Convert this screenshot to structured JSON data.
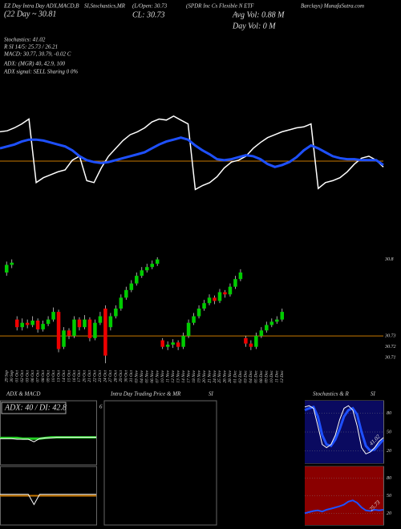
{
  "header": {
    "t1": "EZ Day Intra Day ADX,MACD,B",
    "t2": "SI,Stochastics,MR",
    "t3": "(L/Open: 30.73",
    "t4": "(SPDR Inc  Cs Flexible N ETF",
    "t5": "Barclays) MunafaSutra.com",
    "t6": "(22 Day ~ 30.81",
    "t7": "CL: 30.73",
    "t8": "Avg Vol: 0.88  M",
    "t9": "Day Vol: 0  M",
    "s1": "Stochastics: 41.02",
    "s2": "R                 SI 14/5: 25.73 / 26.21",
    "s3": "MACD: 30.77, 30.79, -0.02  C",
    "s4": "ADX:                (MGR) 40, 42.9, 100",
    "s5": "ADX  signal: SELL  Sharing 0 0%"
  },
  "chart_data": [
    {
      "type": "line",
      "ylim": [
        0,
        100
      ],
      "reference_line": 50,
      "reference_color": "#c87800",
      "series": [
        {
          "color": "#ffffff",
          "width": 1.5,
          "values": [
            80,
            81,
            84,
            88,
            93,
            28,
            33,
            36,
            39,
            41,
            51,
            55,
            30,
            28,
            43,
            55,
            63,
            71,
            77,
            80,
            84,
            90,
            93,
            92,
            96,
            92,
            88,
            21,
            25,
            28,
            34,
            43,
            49,
            51,
            55,
            63,
            69,
            74,
            77,
            80,
            82,
            84,
            85,
            88,
            22,
            28,
            30,
            33,
            39,
            47,
            53,
            55,
            51,
            44
          ]
        },
        {
          "color": "#1e50ff",
          "width": 3,
          "values": [
            63,
            65,
            67,
            70,
            72,
            72,
            71,
            69,
            67,
            65,
            61,
            55,
            51,
            49,
            48,
            49,
            51,
            53,
            55,
            57,
            59,
            63,
            67,
            70,
            72,
            74,
            72,
            66,
            61,
            57,
            52,
            51,
            52,
            54,
            56,
            55,
            52,
            47,
            44,
            46,
            49,
            54,
            61,
            66,
            63,
            59,
            55,
            53,
            52,
            52,
            51,
            51,
            51,
            46
          ]
        }
      ]
    },
    {
      "type": "candlestick",
      "ylim": [
        30.7,
        30.81
      ],
      "yticks": [
        30.8,
        30.73,
        30.72,
        30.71
      ],
      "reference_line": 30.73,
      "reference_color": "#c87800",
      "up_color": "#00cc00",
      "down_color": "#ee0000",
      "categories": [
        "29 Sep",
        "30 Sep",
        "01 Oct",
        "02 Oct",
        "03 Oct",
        "06 Oct",
        "07 Oct",
        "08 Oct",
        "09 Oct",
        "10 Oct",
        "13 Oct",
        "14 Oct",
        "15 Oct",
        "16 Oct",
        "17 Oct",
        "20 Oct",
        "21 Oct",
        "22 Oct",
        "23 Oct",
        "24 Oct",
        "27 Oct",
        "28 Oct",
        "29 Oct",
        "30 Oct",
        "31 Oct",
        "03 Nov",
        "04 Nov",
        "05 Nov",
        "06 Nov",
        "07 Nov",
        "10 Nov",
        "11 Nov",
        "12 Nov",
        "13 Nov",
        "14 Nov",
        "17 Nov",
        "18 Nov",
        "19 Nov",
        "20 Nov",
        "21 Nov",
        "24 Nov",
        "25 Nov",
        "26 Nov",
        "28 Nov",
        "01 Dec",
        "02 Dec",
        "03 Dec",
        "04 Dec",
        "05 Dec",
        "08 Dec",
        "09 Dec",
        "10 Dec",
        "11 Dec",
        "12 Dec"
      ],
      "ohlc": [
        [
          30.788,
          30.798,
          30.785,
          30.795
        ],
        [
          30.795,
          30.8,
          30.792,
          30.797
        ],
        [
          30.745,
          30.748,
          30.735,
          30.738
        ],
        [
          30.738,
          30.746,
          30.735,
          30.742
        ],
        [
          30.742,
          30.745,
          30.737,
          30.74
        ],
        [
          30.74,
          30.748,
          30.738,
          30.744
        ],
        [
          30.744,
          30.746,
          30.733,
          30.736
        ],
        [
          30.736,
          30.744,
          30.734,
          30.741
        ],
        [
          30.741,
          30.748,
          30.739,
          30.745
        ],
        [
          30.745,
          30.756,
          30.743,
          30.752
        ],
        [
          30.752,
          30.754,
          30.715,
          30.718
        ],
        [
          30.72,
          30.738,
          30.718,
          30.735
        ],
        [
          30.735,
          30.737,
          30.727,
          30.73
        ],
        [
          30.73,
          30.748,
          30.728,
          30.745
        ],
        [
          30.745,
          30.747,
          30.735,
          30.738
        ],
        [
          30.738,
          30.749,
          30.736,
          30.745
        ],
        [
          30.745,
          30.747,
          30.725,
          30.728
        ],
        [
          30.728,
          30.745,
          30.726,
          30.742
        ],
        [
          30.742,
          30.752,
          30.74,
          30.748
        ],
        [
          30.755,
          30.758,
          30.705,
          30.712
        ],
        [
          30.738,
          30.751,
          30.735,
          30.748
        ],
        [
          30.748,
          30.758,
          30.746,
          30.755
        ],
        [
          30.755,
          30.768,
          30.753,
          30.765
        ],
        [
          30.765,
          30.775,
          30.763,
          30.772
        ],
        [
          30.772,
          30.781,
          30.77,
          30.778
        ],
        [
          30.778,
          30.788,
          30.776,
          30.785
        ],
        [
          30.785,
          30.793,
          30.783,
          30.79
        ],
        [
          30.79,
          30.796,
          30.788,
          30.793
        ],
        [
          30.793,
          30.799,
          30.791,
          30.796
        ],
        [
          30.796,
          30.802,
          30.794,
          30.8
        ],
        [
          30.726,
          30.728,
          30.718,
          30.72
        ],
        [
          30.72,
          30.725,
          30.717,
          30.722
        ],
        [
          30.722,
          30.727,
          30.719,
          30.724
        ],
        [
          30.724,
          30.726,
          30.717,
          30.72
        ],
        [
          30.72,
          30.733,
          30.718,
          30.73
        ],
        [
          30.73,
          30.745,
          30.728,
          30.742
        ],
        [
          30.742,
          30.751,
          30.74,
          30.748
        ],
        [
          30.748,
          30.758,
          30.746,
          30.755
        ],
        [
          30.755,
          30.763,
          30.753,
          30.76
        ],
        [
          30.76,
          30.768,
          30.758,
          30.765
        ],
        [
          30.765,
          30.767,
          30.759,
          30.762
        ],
        [
          30.762,
          30.773,
          30.76,
          30.77
        ],
        [
          30.77,
          30.772,
          30.765,
          30.768
        ],
        [
          30.768,
          30.778,
          30.766,
          30.775
        ],
        [
          30.775,
          30.785,
          30.773,
          30.782
        ],
        [
          30.782,
          30.791,
          30.78,
          30.788
        ],
        [
          30.728,
          30.73,
          30.72,
          30.723
        ],
        [
          30.723,
          30.726,
          30.717,
          30.72
        ],
        [
          30.72,
          30.733,
          30.718,
          30.73
        ],
        [
          30.73,
          30.738,
          30.728,
          30.735
        ],
        [
          30.735,
          30.743,
          30.733,
          30.74
        ],
        [
          30.74,
          30.746,
          30.738,
          30.743
        ],
        [
          30.743,
          30.748,
          30.741,
          30.745
        ],
        [
          30.745,
          30.755,
          30.743,
          30.752
        ]
      ]
    },
    {
      "type": "line",
      "title": "ADX  & MACD",
      "annotation": "ADX: 40  / DI: 42.8",
      "ylim": [
        0,
        100
      ],
      "series": [
        {
          "color": "#22cc22",
          "width": 3,
          "values": [
            42,
            42,
            42,
            42,
            41,
            41,
            41,
            41,
            42,
            43,
            43,
            43,
            43,
            43,
            43,
            43,
            43,
            43
          ]
        },
        {
          "color": "#ffffff",
          "width": 1,
          "values": [
            41,
            41,
            41,
            40,
            40,
            40,
            36,
            41,
            42,
            42,
            43,
            43,
            43,
            43,
            43,
            43,
            43,
            43
          ]
        }
      ],
      "lower": {
        "ylim": [
          -1,
          1
        ],
        "series": [
          {
            "color": "#c87800",
            "width": 2,
            "values": [
              0,
              0,
              0,
              0,
              0,
              0,
              0,
              0,
              0,
              0,
              0,
              0,
              0,
              0,
              0,
              0,
              0,
              0
            ]
          },
          {
            "color": "#ffffff",
            "width": 1,
            "values": [
              0.05,
              0.05,
              0.05,
              0.05,
              0.05,
              0.05,
              -0.3,
              0.05,
              0.05,
              0.05,
              0.05,
              0.05,
              0.05,
              0.05,
              0.05,
              0.05,
              0.05,
              0.05
            ]
          }
        ]
      }
    },
    {
      "type": "empty",
      "title": "Intra  Day Trading Price  & MR",
      "title2": "SI",
      "annotation": "6"
    },
    {
      "type": "line",
      "title": "Stochastics & R",
      "title2": "SI",
      "annotation": "41.02",
      "ylim": [
        0,
        100
      ],
      "yticks": [
        80,
        50,
        20
      ],
      "background": "#0a0a60",
      "series": [
        {
          "color": "#1e50ff",
          "width": 3,
          "values": [
            85,
            88,
            90,
            75,
            45,
            30,
            28,
            38,
            55,
            75,
            85,
            88,
            78,
            50,
            28,
            20,
            22,
            30,
            38
          ]
        },
        {
          "color": "#ffffff",
          "width": 1,
          "values": [
            90,
            92,
            88,
            60,
            30,
            25,
            30,
            45,
            70,
            88,
            92,
            85,
            60,
            25,
            15,
            18,
            25,
            35,
            41
          ]
        }
      ],
      "lower": {
        "annotation": "25.73",
        "ylim": [
          0,
          100
        ],
        "yticks": [
          80,
          50,
          20
        ],
        "background": "#8a0000",
        "series": [
          {
            "color": "#1e50ff",
            "width": 2,
            "values": [
              20,
              22,
              24,
              25,
              23,
              26,
              28,
              30,
              32,
              35,
              40,
              42,
              38,
              30,
              25,
              24,
              26,
              25,
              26
            ]
          }
        ]
      }
    }
  ]
}
